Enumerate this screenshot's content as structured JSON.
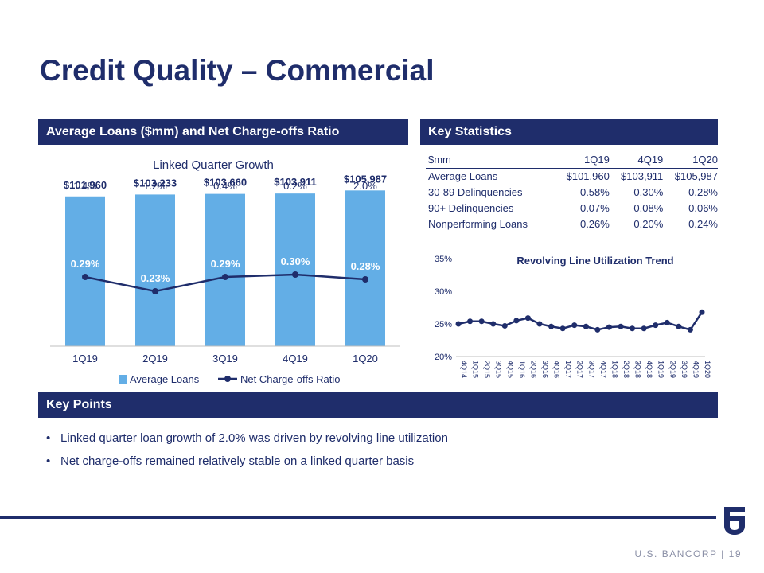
{
  "title": "Credit Quality – Commercial",
  "sections": {
    "left": "Average Loans ($mm) and Net Charge-offs Ratio",
    "right": "Key Statistics",
    "keypoints": "Key Points"
  },
  "chart_data": [
    {
      "type": "bar",
      "title": "Linked Quarter Growth",
      "categories": [
        "1Q19",
        "2Q19",
        "3Q19",
        "4Q19",
        "1Q20"
      ],
      "growth_labels": [
        "1.4%",
        "1.2%",
        "0.4%",
        "0.2%",
        "2.0%"
      ],
      "series": [
        {
          "name": "Average Loans",
          "type": "bar",
          "values": [
            101960,
            103233,
            103660,
            103911,
            105987
          ],
          "labels": [
            "$101,960",
            "$103,233",
            "$103,660",
            "$103,911",
            "$105,987"
          ],
          "color": "#63aee6"
        },
        {
          "name": "Net Charge-offs Ratio",
          "type": "line",
          "values": [
            0.29,
            0.23,
            0.29,
            0.3,
            0.28
          ],
          "labels": [
            "0.29%",
            "0.23%",
            "0.29%",
            "0.30%",
            "0.28%"
          ],
          "color": "#1f2d6b"
        }
      ],
      "legend": "bottom"
    },
    {
      "type": "line",
      "title": "Revolving Line Utilization Trend",
      "categories": [
        "4Q14",
        "1Q15",
        "2Q15",
        "3Q15",
        "4Q15",
        "1Q16",
        "2Q16",
        "3Q16",
        "4Q16",
        "1Q17",
        "2Q17",
        "3Q17",
        "4Q17",
        "1Q18",
        "2Q18",
        "3Q18",
        "4Q18",
        "1Q19",
        "2Q19",
        "3Q19",
        "4Q19",
        "1Q20"
      ],
      "values": [
        25.0,
        25.4,
        25.4,
        25.0,
        24.7,
        25.5,
        25.9,
        25.0,
        24.6,
        24.3,
        24.8,
        24.6,
        24.1,
        24.5,
        24.6,
        24.3,
        24.3,
        24.8,
        25.2,
        24.6,
        24.1,
        26.8
      ],
      "ylim": [
        20,
        35
      ],
      "yticks": [
        "20%",
        "25%",
        "30%",
        "35%"
      ],
      "color": "#1f2d6b"
    }
  ],
  "stats": {
    "headers": [
      "$mm",
      "1Q19",
      "4Q19",
      "1Q20"
    ],
    "rows": [
      [
        "Average Loans",
        "$101,960",
        "$103,911",
        "$105,987"
      ],
      [
        "30-89 Delinquencies",
        "0.58%",
        "0.30%",
        "0.28%"
      ],
      [
        "90+ Delinquencies",
        "0.07%",
        "0.08%",
        "0.06%"
      ],
      [
        "Nonperforming Loans",
        "0.26%",
        "0.20%",
        "0.24%"
      ]
    ]
  },
  "bullets": [
    "Linked quarter loan growth of 2.0% was driven by revolving line utilization",
    "Net charge-offs remained relatively stable on a linked quarter basis"
  ],
  "bullet_char": "•",
  "footer": {
    "company": "U.S. BANCORP",
    "separator": "|",
    "page": "19"
  }
}
